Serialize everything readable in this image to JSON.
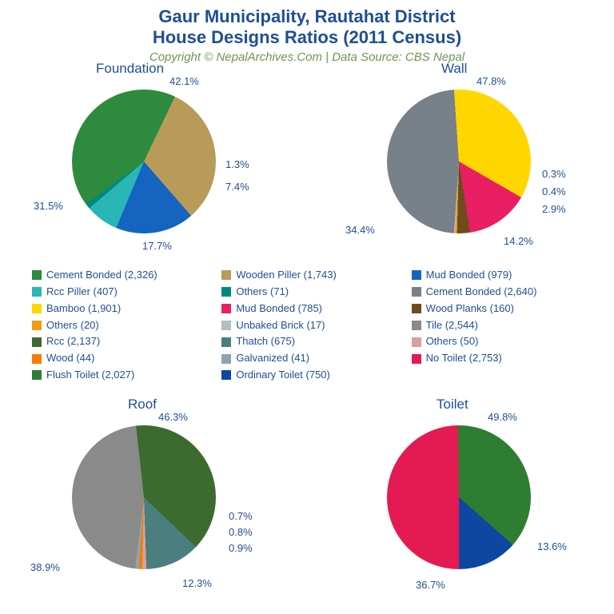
{
  "title_line1": "Gaur Municipality, Rautahat District",
  "title_line2": "House Designs Ratios (2011 Census)",
  "subtitle": "Copyright © NepalArchives.Com | Data Source: CBS Nepal",
  "colors": {
    "title_color": "#1f4e96",
    "subtitle_color": "#6a994e",
    "label_color": "#1f4e96",
    "background": "#ffffff"
  },
  "typography": {
    "title_fontsize": 22,
    "subtitle_fontsize": 15,
    "chart_title_fontsize": 17,
    "label_fontsize": 13,
    "legend_fontsize": 13
  },
  "legend": [
    [
      {
        "label": "Cement Bonded (2,326)",
        "color": "#2e8b3d"
      },
      {
        "label": "Rcc Piller (407)",
        "color": "#2bb6b6"
      },
      {
        "label": "Bamboo (1,901)",
        "color": "#ffd600"
      },
      {
        "label": "Others (20)",
        "color": "#f39c12"
      },
      {
        "label": "Rcc (2,137)",
        "color": "#3d6b2f"
      },
      {
        "label": "Wood (44)",
        "color": "#f57c00"
      },
      {
        "label": "Flush Toilet (2,027)",
        "color": "#2e7d32"
      }
    ],
    [
      {
        "label": "Wooden Piller (1,743)",
        "color": "#b89b59"
      },
      {
        "label": "Others (71)",
        "color": "#00897b"
      },
      {
        "label": "Mud Bonded (785)",
        "color": "#e91e63"
      },
      {
        "label": "Unbaked Brick (17)",
        "color": "#b0bec5"
      },
      {
        "label": "Thatch (675)",
        "color": "#4b7e7e"
      },
      {
        "label": "Galvanized (41)",
        "color": "#90a4ae"
      },
      {
        "label": "Ordinary Toilet (750)",
        "color": "#0d47a1"
      }
    ],
    [
      {
        "label": "Mud Bonded (979)",
        "color": "#1565c0"
      },
      {
        "label": "Cement Bonded (2,640)",
        "color": "#78808a"
      },
      {
        "label": "Wood Planks (160)",
        "color": "#6d4c1e"
      },
      {
        "label": "Tile (2,544)",
        "color": "#8a8a8a"
      },
      {
        "label": "Others (50)",
        "color": "#d8a0a0"
      },
      {
        "label": "No Toilet (2,753)",
        "color": "#e31b52"
      }
    ]
  ],
  "charts": {
    "foundation": {
      "title": "Foundation",
      "type": "pie",
      "slices": [
        {
          "label": "Cement Bonded",
          "pct": 42.1,
          "color": "#2e8b3d"
        },
        {
          "label": "Wooden Piller",
          "pct": 31.5,
          "color": "#b89b59"
        },
        {
          "label": "Mud Bonded",
          "pct": 17.7,
          "color": "#1565c0"
        },
        {
          "label": "Rcc Piller",
          "pct": 7.4,
          "color": "#2bb6b6"
        },
        {
          "label": "Others",
          "pct": 1.3,
          "color": "#00897b"
        }
      ],
      "start_angle": -126
    },
    "wall": {
      "title": "Wall",
      "type": "pie",
      "slices": [
        {
          "label": "Cement Bonded",
          "pct": 47.8,
          "color": "#78808a"
        },
        {
          "label": "Bamboo",
          "pct": 34.4,
          "color": "#ffd600"
        },
        {
          "label": "Mud Bonded",
          "pct": 14.2,
          "color": "#e91e63"
        },
        {
          "label": "Wood Planks",
          "pct": 2.9,
          "color": "#6d4c1e"
        },
        {
          "label": "Others",
          "pct": 0.4,
          "color": "#f39c12"
        },
        {
          "label": "Unbaked Brick",
          "pct": 0.3,
          "color": "#b0bec5"
        }
      ],
      "start_angle": -176
    },
    "roof": {
      "title": "Roof",
      "type": "pie",
      "slices": [
        {
          "label": "Tile",
          "pct": 46.3,
          "color": "#8a8a8a"
        },
        {
          "label": "Rcc",
          "pct": 38.9,
          "color": "#3d6b2f"
        },
        {
          "label": "Thatch",
          "pct": 12.3,
          "color": "#4b7e7e"
        },
        {
          "label": "Others",
          "pct": 0.9,
          "color": "#d8a0a0"
        },
        {
          "label": "Wood",
          "pct": 0.8,
          "color": "#f57c00"
        },
        {
          "label": "Galvanized",
          "pct": 0.7,
          "color": "#90a4ae"
        }
      ],
      "start_angle": -173
    },
    "toilet": {
      "title": "Toilet",
      "type": "pie",
      "slices": [
        {
          "label": "No Toilet",
          "pct": 49.8,
          "color": "#e31b52"
        },
        {
          "label": "Flush Toilet",
          "pct": 36.7,
          "color": "#2e7d32"
        },
        {
          "label": "Ordinary Toilet",
          "pct": 13.6,
          "color": "#0d47a1"
        }
      ],
      "start_angle": 180
    }
  }
}
